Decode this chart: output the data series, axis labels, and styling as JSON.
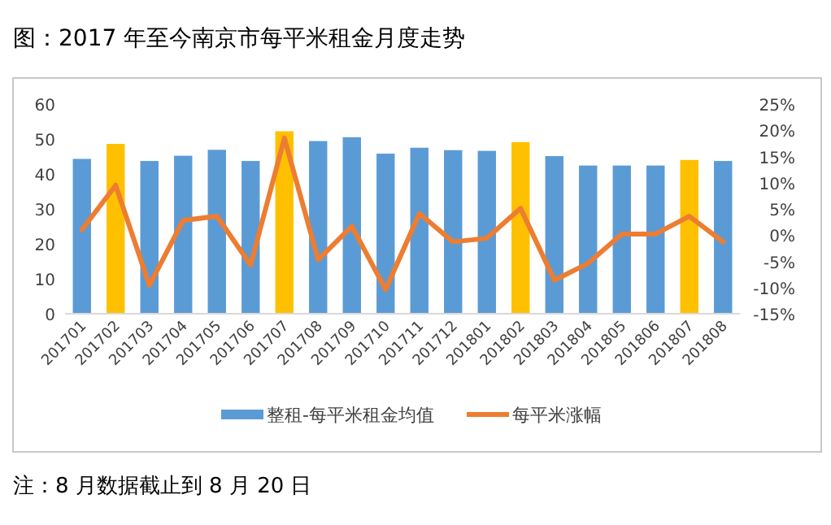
{
  "chart_data": {
    "type": "bar",
    "title": "图：2017 年至今南京市每平米租金月度走势",
    "annotations": [
      "注：8 月数据截止到 8 月 20 日"
    ],
    "categories": [
      "201701",
      "201702",
      "201703",
      "201704",
      "201705",
      "201706",
      "201707",
      "201708",
      "201709",
      "201710",
      "201711",
      "201712",
      "201801",
      "201802",
      "201803",
      "201804",
      "201805",
      "201806",
      "201807",
      "201808"
    ],
    "series": [
      {
        "name": "整租-每平米租金均值",
        "color": "#5b9bd5",
        "colors": [
          "#5b9bd5",
          "#ffc000",
          "#5b9bd5",
          "#5b9bd5",
          "#5b9bd5",
          "#5b9bd5",
          "#ffc000",
          "#5b9bd5",
          "#5b9bd5",
          "#5b9bd5",
          "#5b9bd5",
          "#5b9bd5",
          "#5b9bd5",
          "#ffc000",
          "#5b9bd5",
          "#5b9bd5",
          "#5b9bd5",
          "#5b9bd5",
          "#ffc000",
          "#5b9bd5"
        ],
        "values": [
          44.3,
          48.6,
          43.7,
          45.2,
          46.9,
          43.7,
          52.2,
          49.4,
          50.5,
          45.8,
          47.5,
          46.8,
          46.6,
          49.1,
          45.1,
          42.4,
          42.4,
          42.4,
          44.0,
          43.7
        ]
      },
      {
        "name": "每平米涨幅",
        "type": "line",
        "axis": "y2",
        "color": "#ed7d31",
        "values": [
          1.0,
          9.5,
          -9.6,
          2.8,
          3.6,
          -5.7,
          18.5,
          -4.7,
          1.7,
          -10.4,
          4.1,
          -1.3,
          -0.6,
          5.1,
          -8.6,
          -5.4,
          0.2,
          0.2,
          3.6,
          -1.3
        ]
      }
    ],
    "ylim": [
      0,
      60
    ],
    "yticks": [
      0,
      10,
      20,
      30,
      40,
      50,
      60
    ],
    "y2lim": [
      -15,
      25
    ],
    "y2ticks": [
      {
        "value": -15,
        "label": "-15%"
      },
      {
        "value": -10,
        "label": "-10%"
      },
      {
        "value": -5,
        "label": "-5%"
      },
      {
        "value": 0,
        "label": "0%"
      },
      {
        "value": 5,
        "label": "5%"
      },
      {
        "value": 10,
        "label": "10%"
      },
      {
        "value": 15,
        "label": "15%"
      },
      {
        "value": 20,
        "label": "20%"
      },
      {
        "value": 25,
        "label": "25%"
      }
    ],
    "legend": "bottom",
    "grid": false
  }
}
